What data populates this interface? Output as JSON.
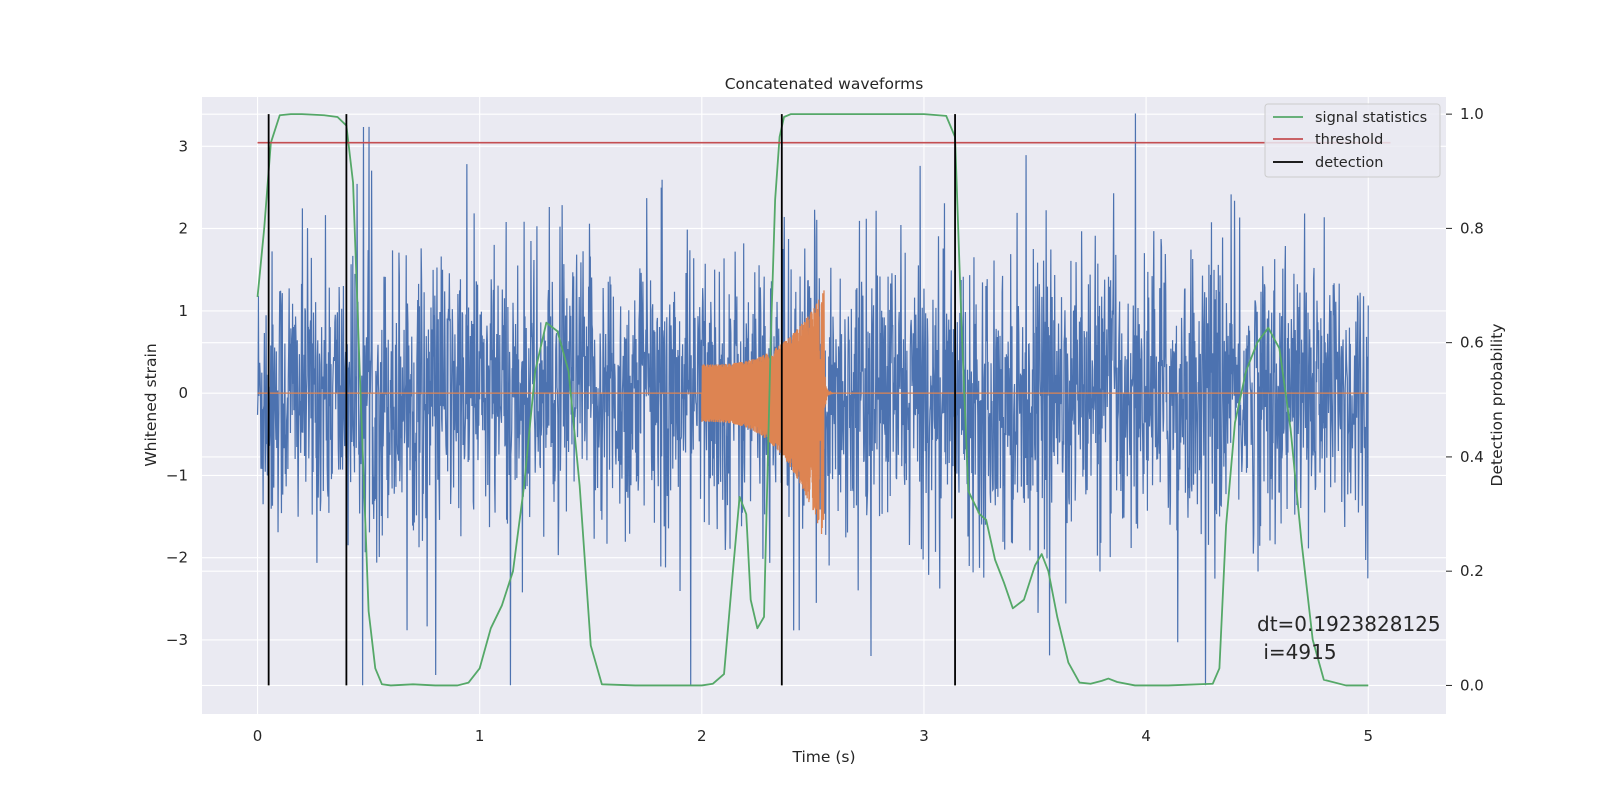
{
  "chart_data": {
    "type": "line",
    "title": "Concatenated waveforms",
    "xlabel": "Time (s)",
    "ylabel": "Whitened strain",
    "ylabel_right": "Detection probability",
    "xlim": [
      -0.25,
      5.35
    ],
    "ylim": [
      -3.9,
      3.6
    ],
    "ylim_right": [
      -0.05,
      1.03
    ],
    "xticks": [
      0,
      1,
      2,
      3,
      4,
      5
    ],
    "xtick_labels": [
      "0",
      "1",
      "2",
      "3",
      "4",
      "5"
    ],
    "yticks": [
      3,
      2,
      1,
      0,
      -1,
      -2,
      -3
    ],
    "ytick_labels": [
      "3",
      "2",
      "1",
      "0",
      "−1",
      "−2",
      "−3"
    ],
    "yticks_right": [
      1.0,
      0.8,
      0.6,
      0.4,
      0.2,
      0.0
    ],
    "ytick_labels_right": [
      "1.0",
      "0.8",
      "0.6",
      "0.4",
      "0.2",
      "0.0"
    ],
    "grid": true,
    "legend_position": "top-right",
    "colors": {
      "noise": "#4c72b0",
      "injection": "#dd8452",
      "signal_statistics": "#55a868",
      "threshold": "#c44e52",
      "detection": "#000000",
      "background": "#eaeaf2",
      "grid": "#ffffff"
    },
    "legend": [
      "signal statistics",
      "threshold",
      "detection"
    ],
    "noise_envelope": {
      "x": [
        0,
        5
      ],
      "amplitude_typical": 2.0,
      "peak_max": 3.4,
      "trough_min": -3.55
    },
    "injection": {
      "start": 2.0,
      "merger": 2.55,
      "end": 2.6,
      "amplitude_start": 0.35,
      "amplitude_peak_pos": 1.25,
      "amplitude_peak_neg": -1.8
    },
    "threshold": {
      "value": 0.95,
      "x": [
        0,
        5.1
      ]
    },
    "detections": [
      0.05,
      0.4,
      2.36,
      3.14
    ],
    "signal_statistics": {
      "x": [
        0.0,
        0.03,
        0.06,
        0.1,
        0.15,
        0.2,
        0.3,
        0.36,
        0.4,
        0.43,
        0.46,
        0.5,
        0.53,
        0.56,
        0.6,
        0.7,
        0.8,
        0.9,
        0.95,
        1.0,
        1.05,
        1.1,
        1.15,
        1.2,
        1.25,
        1.3,
        1.35,
        1.4,
        1.45,
        1.5,
        1.55,
        1.7,
        1.9,
        2.0,
        2.05,
        2.1,
        2.14,
        2.17,
        2.2,
        2.22,
        2.25,
        2.28,
        2.31,
        2.33,
        2.35,
        2.37,
        2.4,
        2.45,
        2.6,
        2.8,
        3.0,
        3.1,
        3.14,
        3.17,
        3.2,
        3.25,
        3.28,
        3.32,
        3.36,
        3.4,
        3.45,
        3.5,
        3.53,
        3.56,
        3.6,
        3.65,
        3.7,
        3.75,
        3.8,
        3.83,
        3.87,
        3.95,
        4.1,
        4.3,
        4.33,
        4.36,
        4.4,
        4.45,
        4.5,
        4.55,
        4.6,
        4.65,
        4.7,
        4.75,
        4.8,
        4.9,
        5.0
      ],
      "values": [
        0.68,
        0.8,
        0.95,
        0.998,
        1.0,
        1.0,
        0.998,
        0.995,
        0.98,
        0.88,
        0.55,
        0.13,
        0.03,
        0.002,
        0.0,
        0.002,
        0.0,
        0.0,
        0.005,
        0.03,
        0.1,
        0.14,
        0.2,
        0.35,
        0.55,
        0.635,
        0.62,
        0.55,
        0.35,
        0.07,
        0.002,
        0.0,
        0.0,
        0.0,
        0.003,
        0.02,
        0.2,
        0.33,
        0.3,
        0.15,
        0.1,
        0.12,
        0.6,
        0.85,
        0.96,
        0.995,
        1.0,
        1.0,
        1.0,
        1.0,
        1.0,
        0.997,
        0.96,
        0.62,
        0.34,
        0.3,
        0.29,
        0.22,
        0.18,
        0.135,
        0.15,
        0.21,
        0.23,
        0.2,
        0.12,
        0.04,
        0.005,
        0.003,
        0.008,
        0.012,
        0.006,
        0.0,
        0.0,
        0.003,
        0.03,
        0.28,
        0.46,
        0.55,
        0.6,
        0.626,
        0.59,
        0.45,
        0.25,
        0.08,
        0.01,
        0.0,
        0.0
      ]
    },
    "annotation": {
      "line1": "dt=0.1923828125",
      "line2": " i=4915"
    }
  }
}
